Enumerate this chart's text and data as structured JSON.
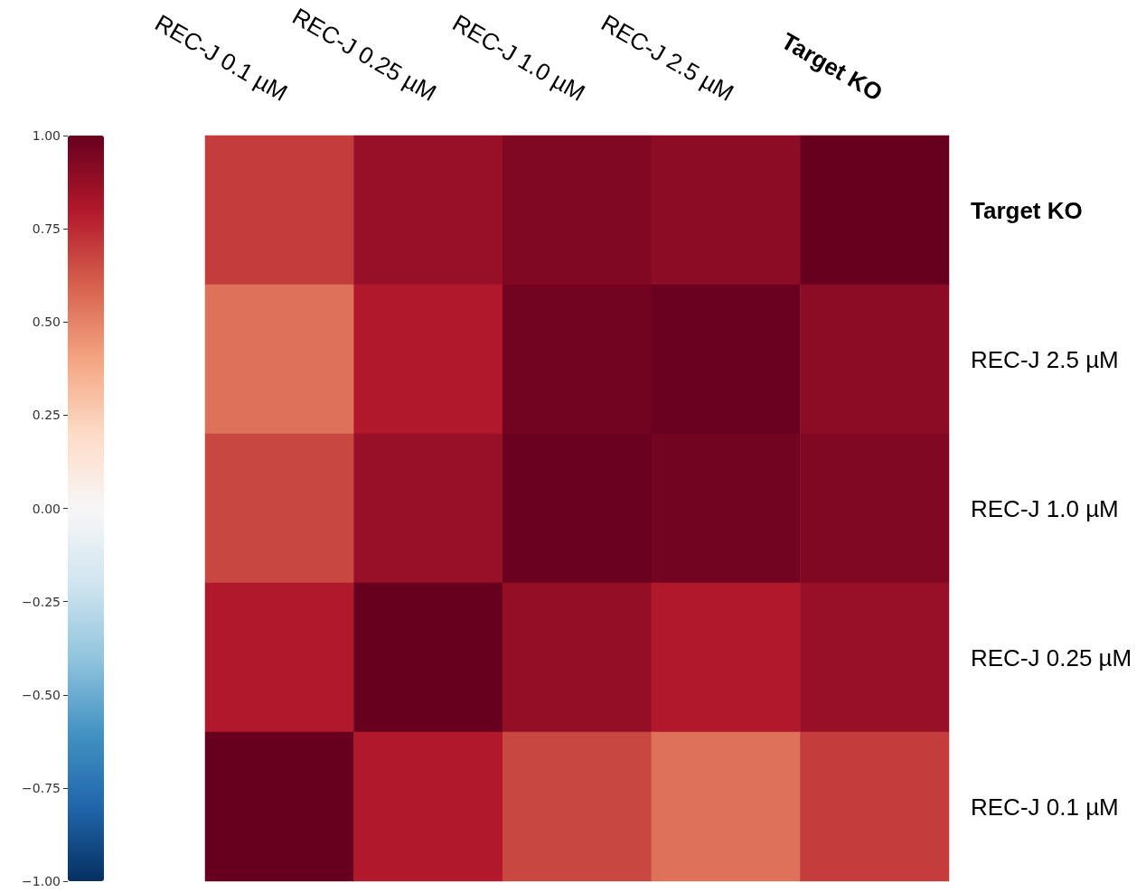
{
  "chart_data": {
    "type": "heatmap",
    "categories": [
      "REC-J 0.1 µM",
      "REC-J 0.25 µM",
      "REC-J 1.0 µM",
      "REC-J 2.5 µM",
      "Target KO"
    ],
    "y_categories": [
      "Target KO",
      "REC-J 2.5 µM",
      "REC-J 1.0 µM",
      "REC-J 0.25 µM",
      "REC-J 0.1 µM"
    ],
    "cells": [
      [
        0.7,
        0.87,
        0.93,
        0.9,
        1.0
      ],
      [
        0.55,
        0.8,
        0.97,
        0.99,
        0.9
      ],
      [
        0.67,
        0.87,
        0.99,
        0.97,
        0.93
      ],
      [
        0.8,
        1.0,
        0.88,
        0.8,
        0.87
      ],
      [
        1.0,
        0.8,
        0.67,
        0.55,
        0.7
      ]
    ],
    "clim": [
      -1,
      1
    ],
    "cticks": [
      {
        "value": -1,
        "label": "−1.00"
      },
      {
        "value": -0.75,
        "label": "−0.75"
      },
      {
        "value": -0.5,
        "label": "−0.50"
      },
      {
        "value": -0.25,
        "label": "−0.25"
      },
      {
        "value": 0,
        "label": "0.00"
      },
      {
        "value": 0.25,
        "label": "0.25"
      },
      {
        "value": 0.5,
        "label": "0.50"
      },
      {
        "value": 0.75,
        "label": "0.75"
      },
      {
        "value": 1,
        "label": "1.00"
      }
    ]
  }
}
